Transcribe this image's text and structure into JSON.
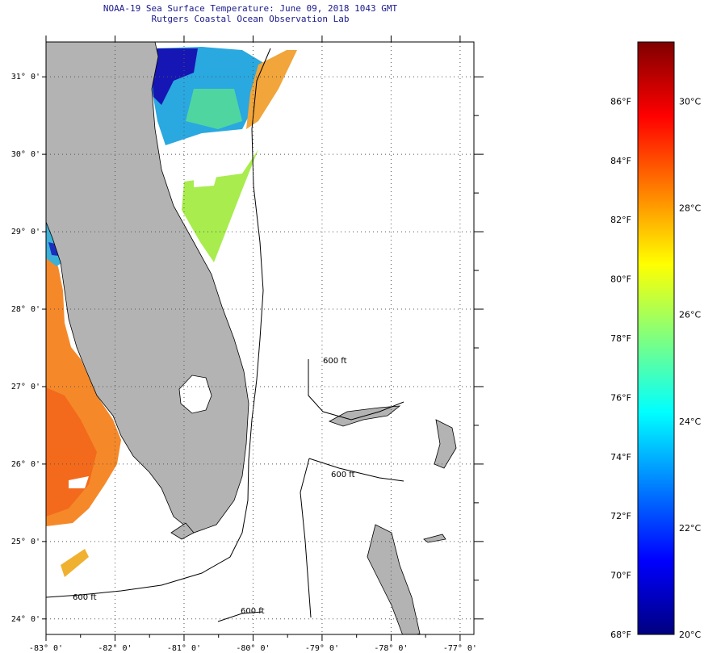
{
  "title": {
    "line1": "NOAA-19 Sea Surface Temperature:  June 09, 2018 1043 GMT",
    "line2": "Rutgers Coastal Ocean Observation Lab"
  },
  "map": {
    "lon_range": [
      -83,
      -76.8
    ],
    "lat_range": [
      23.8,
      31.45
    ],
    "lat_ticks": [
      {
        "value": 31,
        "label": "31° 0'"
      },
      {
        "value": 30,
        "label": "30° 0'"
      },
      {
        "value": 29,
        "label": "29° 0'"
      },
      {
        "value": 28,
        "label": "28° 0'"
      },
      {
        "value": 27,
        "label": "27° 0'"
      },
      {
        "value": 26,
        "label": "26° 0'"
      },
      {
        "value": 25,
        "label": "25° 0'"
      },
      {
        "value": 24,
        "label": "24° 0'"
      }
    ],
    "lon_ticks": [
      {
        "value": -83,
        "label": "-83° 0'"
      },
      {
        "value": -82,
        "label": "-82° 0'"
      },
      {
        "value": -81,
        "label": "-81° 0'"
      },
      {
        "value": -80,
        "label": "-80° 0'"
      },
      {
        "value": -79,
        "label": "-79° 0'"
      },
      {
        "value": -78,
        "label": "-78° 0'"
      },
      {
        "value": -77,
        "label": "-77° 0'"
      }
    ],
    "contour_labels": [
      "600 ft",
      "600 ft",
      "600 ft",
      "600 ft"
    ],
    "colors": {
      "land": "#b3b3b3",
      "no_data": "#ffffff",
      "coast": "#000000",
      "grid": "#555555"
    }
  },
  "colorbar": {
    "min_f": 68,
    "max_f": 88,
    "fahrenheit_ticks": [
      {
        "value": 86,
        "label": "86°F"
      },
      {
        "value": 84,
        "label": "84°F"
      },
      {
        "value": 82,
        "label": "82°F"
      },
      {
        "value": 80,
        "label": "80°F"
      },
      {
        "value": 78,
        "label": "78°F"
      },
      {
        "value": 76,
        "label": "76°F"
      },
      {
        "value": 74,
        "label": "74°F"
      },
      {
        "value": 72,
        "label": "72°F"
      },
      {
        "value": 70,
        "label": "70°F"
      },
      {
        "value": 68,
        "label": "68°F"
      }
    ],
    "celsius_ticks": [
      {
        "value": 30,
        "label": "30°C"
      },
      {
        "value": 28,
        "label": "28°C"
      },
      {
        "value": 26,
        "label": "26°C"
      },
      {
        "value": 24,
        "label": "24°C"
      },
      {
        "value": 22,
        "label": "22°C"
      },
      {
        "value": 20,
        "label": "20°C"
      }
    ],
    "stops": [
      "#00007f",
      "#0000ff",
      "#007fff",
      "#00ffff",
      "#7fff7f",
      "#ffff00",
      "#ff7f00",
      "#ff0000",
      "#7f0000"
    ]
  }
}
